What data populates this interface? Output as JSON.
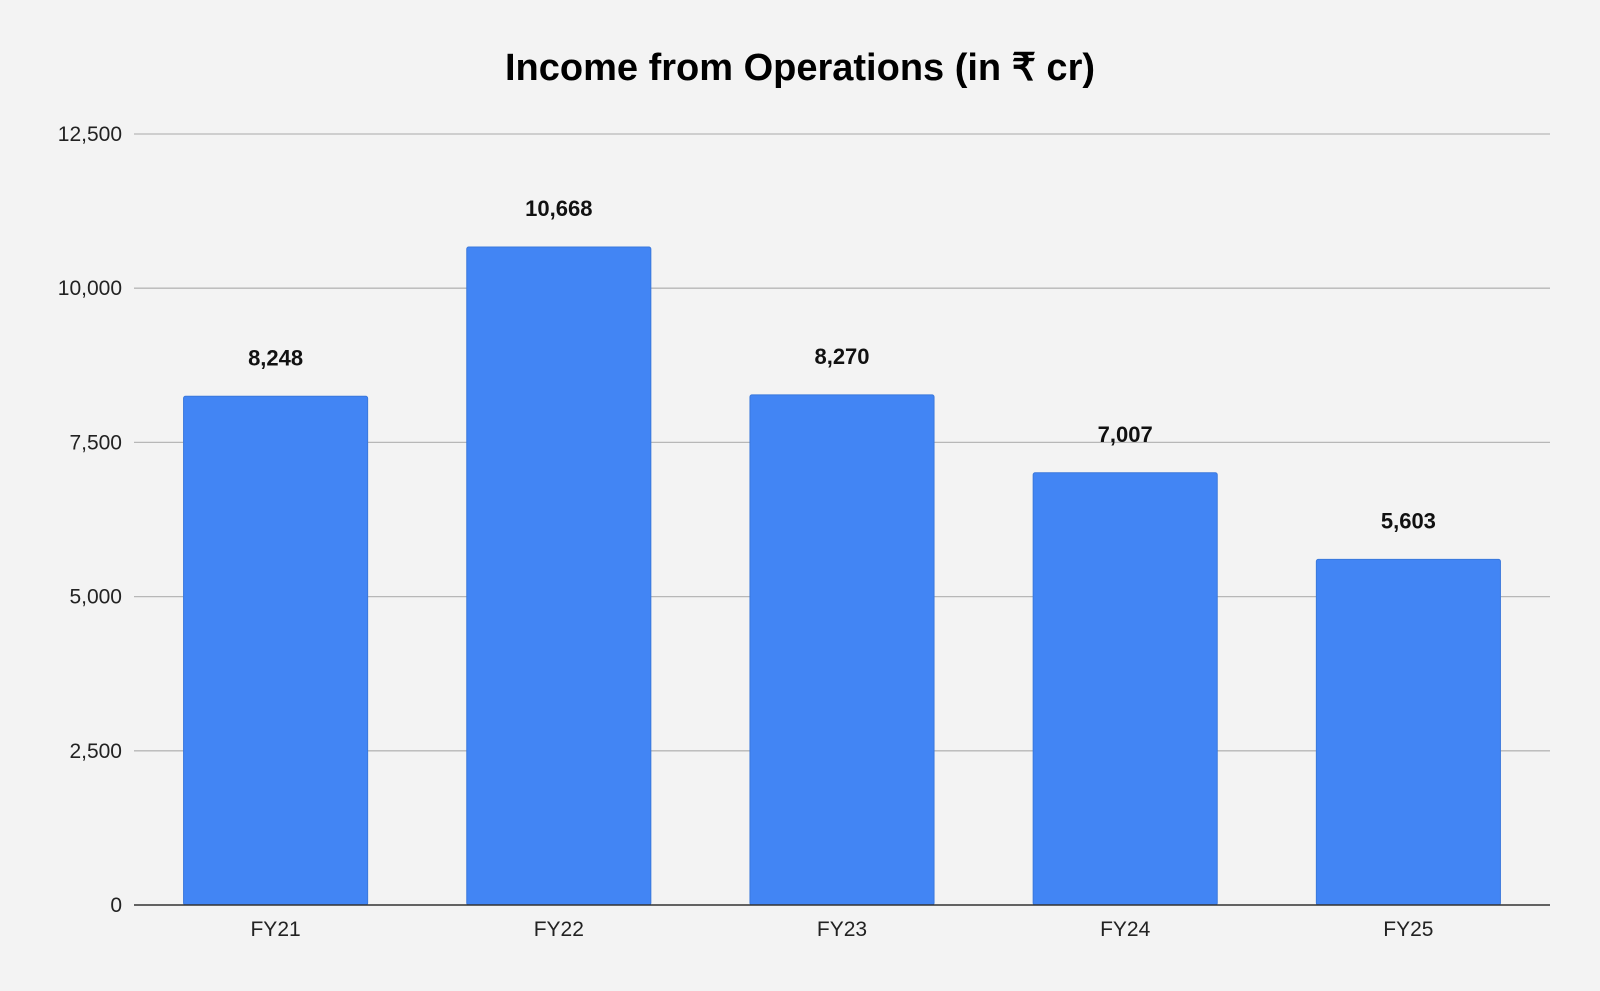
{
  "chart_data": {
    "type": "bar",
    "title": "Income from Operations (in ₹ cr)",
    "xlabel": "",
    "ylabel": "",
    "categories": [
      "FY21",
      "FY22",
      "FY23",
      "FY24",
      "FY25"
    ],
    "values": [
      8248,
      10668,
      8270,
      7007,
      5603
    ],
    "data_labels": [
      "8,248",
      "10,668",
      "8,270",
      "7,007",
      "5,603"
    ],
    "ylim": [
      0,
      12500
    ],
    "yticks": [
      0,
      2500,
      5000,
      7500,
      10000,
      12500
    ],
    "ytick_labels": [
      "0",
      "2,500",
      "5,000",
      "7,500",
      "10,000",
      "12,500"
    ],
    "grid": true,
    "legend": "none",
    "bar_color": "#4285f4",
    "background_color": "#f3f3f3"
  }
}
